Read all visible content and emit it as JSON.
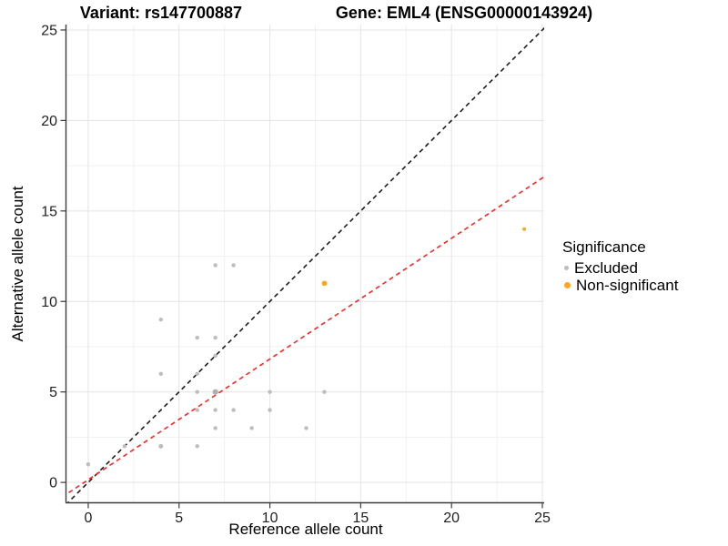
{
  "title": {
    "variant": "Variant: rs147700887",
    "gene": "Gene: EML4 (ENSG00000143924)"
  },
  "legend": {
    "title": "Significance",
    "items": [
      {
        "label": "Excluded",
        "color": "#BDBDBD"
      },
      {
        "label": "Non-significant",
        "color": "#FFA520"
      }
    ]
  },
  "chart_data": {
    "type": "scatter",
    "title": "Variant: rs147700887   Gene: EML4 (ENSG00000143924)",
    "xlabel": "Reference allele count",
    "ylabel": "Alternative allele count",
    "xlim": [
      -1.2,
      25.1
    ],
    "ylim": [
      -1.1,
      25.3
    ],
    "x_ticks": [
      0,
      5,
      10,
      15,
      20,
      25
    ],
    "y_ticks": [
      0,
      5,
      10,
      15,
      20,
      25
    ],
    "x_minor": [
      2.5,
      7.5,
      12.5,
      17.5,
      22.5
    ],
    "y_minor": [
      2.5,
      7.5,
      12.5,
      17.5,
      22.5
    ],
    "grid": "major+minor",
    "legend_position": "right",
    "colors": {
      "major_grid": "#E4E4E4",
      "minor_grid": "#F1F1F1",
      "axis_line": "#3C3C3C",
      "tick_mark": "#3C3C3C"
    },
    "series": [
      {
        "name": "Excluded",
        "color": "#BDBDBD",
        "points": [
          {
            "x": 0,
            "y": 1
          },
          {
            "x": 2,
            "y": 2
          },
          {
            "x": 4,
            "y": 2,
            "r": 2.5
          },
          {
            "x": 4,
            "y": 6
          },
          {
            "x": 4,
            "y": 9
          },
          {
            "x": 6,
            "y": 2
          },
          {
            "x": 6,
            "y": 4
          },
          {
            "x": 6,
            "y": 5
          },
          {
            "x": 6,
            "y": 6
          },
          {
            "x": 6,
            "y": 8
          },
          {
            "x": 7,
            "y": 3
          },
          {
            "x": 7,
            "y": 4
          },
          {
            "x": 7,
            "y": 5,
            "r": 3.1,
            "c": "#AFAFAF"
          },
          {
            "x": 7,
            "y": 7
          },
          {
            "x": 7,
            "y": 8
          },
          {
            "x": 7,
            "y": 12
          },
          {
            "x": 8,
            "y": 4
          },
          {
            "x": 8,
            "y": 12
          },
          {
            "x": 9,
            "y": 3
          },
          {
            "x": 10,
            "y": 4
          },
          {
            "x": 10,
            "y": 5
          },
          {
            "x": 12,
            "y": 3
          },
          {
            "x": 13,
            "y": 5
          }
        ]
      },
      {
        "name": "Non-significant",
        "color": "#FFA520",
        "points": [
          {
            "x": 13,
            "y": 11,
            "r": 2.9
          },
          {
            "x": 24,
            "y": 14,
            "r": 2.0
          }
        ]
      }
    ],
    "lines": [
      {
        "name": "identity-line",
        "slope": 1,
        "intercept": 0,
        "color": "#1C1C1C",
        "dash": "5,4",
        "width": 1.6
      },
      {
        "name": "fit-line",
        "slope": 0.667,
        "intercept": 0.15,
        "color": "#FF2420",
        "dash": "5,4",
        "width": 1.6
      }
    ]
  }
}
